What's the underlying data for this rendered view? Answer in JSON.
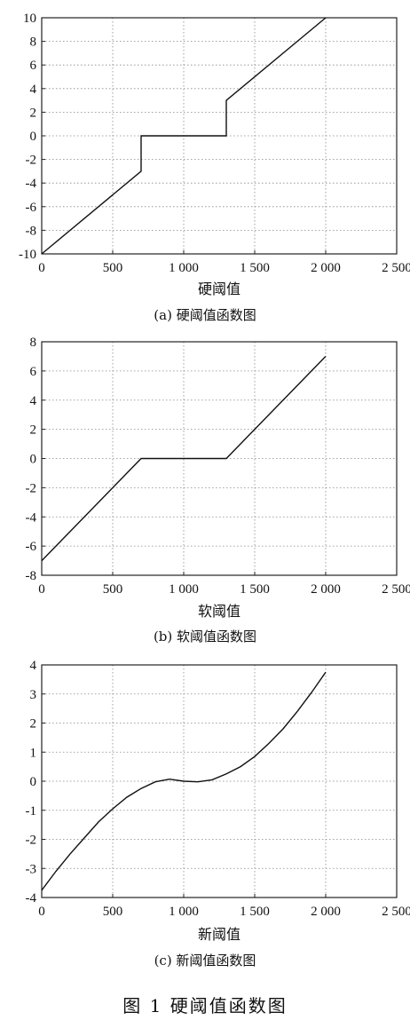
{
  "figure_caption": "图 1   硬阈值函数图",
  "chart_data": [
    {
      "type": "line",
      "xlabel": "硬阈值",
      "caption": "(a) 硬阈值函数图",
      "xlim": [
        0,
        2500
      ],
      "ylim": [
        -10,
        10
      ],
      "xticks": [
        0,
        500,
        1000,
        1500,
        2000,
        2500
      ],
      "xtick_labels": [
        "0",
        "500",
        "1 000",
        "1 500",
        "2 000",
        "2 500"
      ],
      "yticks": [
        10,
        8,
        6,
        4,
        2,
        0,
        -2,
        -4,
        -6,
        -8,
        -10
      ],
      "ytick_labels": [
        "10",
        "8",
        "6",
        "4",
        "2",
        "0",
        "-2",
        "-4",
        "-6",
        "-8",
        "-10"
      ],
      "grid": true,
      "series": [
        {
          "x": [
            0,
            700,
            700,
            1300,
            1300,
            2000
          ],
          "y": [
            -10,
            -3,
            0,
            0,
            3,
            10
          ]
        }
      ]
    },
    {
      "type": "line",
      "xlabel": "软阈值",
      "caption": "(b) 软阈值函数图",
      "xlim": [
        0,
        2500
      ],
      "ylim": [
        -8,
        8
      ],
      "xticks": [
        0,
        500,
        1000,
        1500,
        2000,
        2500
      ],
      "xtick_labels": [
        "0",
        "500",
        "1 000",
        "1 500",
        "2 000",
        "2 500"
      ],
      "yticks": [
        8,
        6,
        4,
        2,
        0,
        -2,
        -4,
        -6,
        -8
      ],
      "ytick_labels": [
        "8",
        "6",
        "4",
        "2",
        "0",
        "-2",
        "-4",
        "-6",
        "-8"
      ],
      "grid": true,
      "series": [
        {
          "x": [
            0,
            700,
            1300,
            2000
          ],
          "y": [
            -7,
            0,
            0,
            7
          ]
        }
      ]
    },
    {
      "type": "line",
      "xlabel": "新阈值",
      "caption": "(c) 新阈值函数图",
      "xlim": [
        0,
        2500
      ],
      "ylim": [
        -4,
        4
      ],
      "xticks": [
        0,
        500,
        1000,
        1500,
        2000,
        2500
      ],
      "xtick_labels": [
        "0",
        "500",
        "1 000",
        "1 500",
        "2 000",
        "2 500"
      ],
      "yticks": [
        4,
        3,
        2,
        1,
        0,
        -1,
        -2,
        -3,
        -4
      ],
      "ytick_labels": [
        "4",
        "3",
        "2",
        "1",
        "0",
        "-1",
        "-2",
        "-3",
        "-4"
      ],
      "grid": true,
      "series": [
        {
          "x": [
            0,
            100,
            200,
            300,
            400,
            500,
            600,
            700,
            800,
            900,
            1000,
            1100,
            1200,
            1300,
            1400,
            1500,
            1600,
            1700,
            1800,
            1900,
            2000
          ],
          "y": [
            -3.75,
            -3.1,
            -2.5,
            -1.95,
            -1.4,
            -0.95,
            -0.55,
            -0.25,
            -0.02,
            0.07,
            0.0,
            -0.02,
            0.05,
            0.25,
            0.5,
            0.85,
            1.3,
            1.8,
            2.4,
            3.05,
            3.75
          ]
        }
      ]
    }
  ]
}
